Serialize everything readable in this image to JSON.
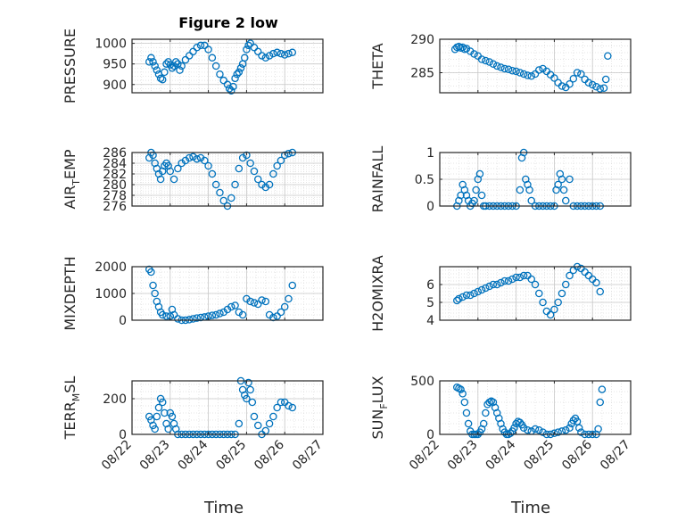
{
  "figure": {
    "title": "Figure 2 low",
    "marker_color": "#0072BD"
  },
  "chart_data": [
    {
      "type": "scatter",
      "title": "Figure 2 low",
      "ylabel": "PRESSURE",
      "xlabel": "",
      "xlim": [
        "08/22",
        "08/27"
      ],
      "ylim": [
        880,
        1010
      ],
      "yticks": [
        900,
        950,
        1000
      ],
      "xticks": [],
      "x": [
        22.45,
        22.5,
        22.55,
        22.6,
        22.65,
        22.7,
        22.75,
        22.8,
        22.85,
        22.9,
        22.95,
        23.0,
        23.05,
        23.1,
        23.15,
        23.2,
        23.25,
        23.3,
        23.4,
        23.5,
        23.6,
        23.7,
        23.8,
        23.9,
        24.0,
        24.1,
        24.2,
        24.3,
        24.4,
        24.5,
        24.55,
        24.6,
        24.65,
        24.7,
        24.75,
        24.8,
        24.85,
        24.9,
        24.95,
        25.0,
        25.05,
        25.1,
        25.2,
        25.3,
        25.4,
        25.5,
        25.6,
        25.7,
        25.8,
        25.9,
        26.0,
        26.1,
        26.2
      ],
      "y": [
        955,
        965,
        955,
        945,
        935,
        925,
        915,
        912,
        930,
        950,
        955,
        948,
        940,
        945,
        955,
        950,
        935,
        945,
        960,
        970,
        980,
        990,
        995,
        995,
        985,
        965,
        945,
        925,
        910,
        900,
        890,
        885,
        895,
        915,
        925,
        930,
        940,
        950,
        965,
        985,
        995,
        1000,
        990,
        980,
        970,
        965,
        970,
        975,
        978,
        975,
        972,
        975,
        978
      ]
    },
    {
      "type": "scatter",
      "title": "",
      "ylabel": "THETA",
      "xlabel": "",
      "xlim": [
        "08/22",
        "08/27"
      ],
      "ylim": [
        282,
        290
      ],
      "yticks": [
        285,
        290
      ],
      "xticks": [],
      "x": [
        22.4,
        22.45,
        22.5,
        22.55,
        22.6,
        22.65,
        22.7,
        22.8,
        22.9,
        23.0,
        23.1,
        23.2,
        23.3,
        23.4,
        23.5,
        23.6,
        23.7,
        23.8,
        23.9,
        24.0,
        24.1,
        24.2,
        24.3,
        24.4,
        24.5,
        24.6,
        24.7,
        24.8,
        24.9,
        25.0,
        25.1,
        25.2,
        25.3,
        25.4,
        25.5,
        25.6,
        25.7,
        25.8,
        25.9,
        26.0,
        26.1,
        26.2,
        26.3,
        26.35,
        26.4
      ],
      "y": [
        288.5,
        288.8,
        288.9,
        288.7,
        288.8,
        288.5,
        288.6,
        288.2,
        287.8,
        287.5,
        287.0,
        286.8,
        286.6,
        286.3,
        286.0,
        285.8,
        285.6,
        285.5,
        285.3,
        285.2,
        285.0,
        284.8,
        284.6,
        284.5,
        284.8,
        285.4,
        285.6,
        285.2,
        284.7,
        284.2,
        283.5,
        283.0,
        282.8,
        283.3,
        284.1,
        285.0,
        284.8,
        284.0,
        283.5,
        283.2,
        282.9,
        282.6,
        282.7,
        284.0,
        287.5
      ]
    },
    {
      "type": "scatter",
      "title": "",
      "ylabel": "AIR_TEMP",
      "ylabel_main": "AIR",
      "ylabel_sub": "T",
      "ylabel_rest": "EMP",
      "xlabel": "",
      "xlim": [
        "08/22",
        "08/27"
      ],
      "ylim": [
        276,
        286
      ],
      "yticks": [
        276,
        278,
        280,
        282,
        284,
        286
      ],
      "xticks": [],
      "x": [
        22.45,
        22.5,
        22.55,
        22.6,
        22.65,
        22.7,
        22.75,
        22.8,
        22.85,
        22.9,
        22.95,
        23.0,
        23.1,
        23.2,
        23.3,
        23.4,
        23.5,
        23.6,
        23.7,
        23.8,
        23.9,
        24.0,
        24.1,
        24.2,
        24.3,
        24.4,
        24.5,
        24.6,
        24.7,
        24.8,
        24.9,
        25.0,
        25.1,
        25.2,
        25.3,
        25.4,
        25.5,
        25.6,
        25.7,
        25.8,
        25.9,
        26.0,
        26.1,
        26.2
      ],
      "y": [
        285,
        286,
        285.5,
        284,
        283,
        282,
        281,
        282.5,
        283.5,
        284,
        283.5,
        282.5,
        281,
        283,
        284,
        284.5,
        285,
        285.2,
        284.8,
        285,
        284.5,
        283.5,
        282,
        280,
        278.5,
        277,
        276,
        277.5,
        280,
        283,
        285,
        285.5,
        284,
        282.5,
        281,
        280,
        279.5,
        280,
        282,
        283.5,
        284.5,
        285.5,
        285.8,
        286
      ]
    },
    {
      "type": "scatter",
      "title": "",
      "ylabel": "RAINFALL",
      "xlabel": "",
      "xlim": [
        "08/22",
        "08/27"
      ],
      "ylim": [
        0,
        1
      ],
      "yticks": [
        0,
        0.5,
        1
      ],
      "xticks": [],
      "x": [
        22.45,
        22.5,
        22.55,
        22.6,
        22.65,
        22.7,
        22.75,
        22.8,
        22.85,
        22.9,
        22.95,
        23.0,
        23.05,
        23.1,
        23.15,
        23.2,
        23.3,
        23.4,
        23.5,
        23.6,
        23.7,
        23.8,
        23.9,
        24.0,
        24.1,
        24.15,
        24.2,
        24.25,
        24.3,
        24.35,
        24.4,
        24.5,
        24.6,
        24.7,
        24.8,
        24.9,
        25.0,
        25.05,
        25.1,
        25.15,
        25.2,
        25.25,
        25.3,
        25.4,
        25.5,
        25.6,
        25.7,
        25.8,
        25.9,
        26.0,
        26.1,
        26.2
      ],
      "y": [
        0,
        0.1,
        0.2,
        0.4,
        0.3,
        0.2,
        0.1,
        0,
        0.05,
        0.1,
        0.3,
        0.5,
        0.6,
        0.2,
        0,
        0,
        0,
        0,
        0,
        0,
        0,
        0,
        0,
        0,
        0.3,
        0.9,
        1.0,
        0.5,
        0.4,
        0.3,
        0.1,
        0,
        0,
        0,
        0,
        0,
        0,
        0.3,
        0.4,
        0.6,
        0.5,
        0.3,
        0.1,
        0.5,
        0,
        0,
        0,
        0,
        0,
        0,
        0,
        0
      ]
    },
    {
      "type": "scatter",
      "title": "",
      "ylabel": "MIXDEPTH",
      "xlabel": "",
      "xlim": [
        "08/22",
        "08/27"
      ],
      "ylim": [
        0,
        2000
      ],
      "yticks": [
        0,
        1000,
        2000
      ],
      "xticks": [],
      "x": [
        22.45,
        22.5,
        22.55,
        22.6,
        22.65,
        22.7,
        22.75,
        22.8,
        22.9,
        23.0,
        23.05,
        23.1,
        23.2,
        23.3,
        23.4,
        23.5,
        23.6,
        23.7,
        23.8,
        23.9,
        24.0,
        24.1,
        24.2,
        24.3,
        24.4,
        24.5,
        24.6,
        24.7,
        24.8,
        24.9,
        25.0,
        25.1,
        25.2,
        25.3,
        25.4,
        25.5,
        25.6,
        25.7,
        25.8,
        25.9,
        26.0,
        26.1,
        26.2
      ],
      "y": [
        1900,
        1800,
        1300,
        1000,
        700,
        500,
        300,
        200,
        150,
        150,
        400,
        200,
        50,
        0,
        0,
        20,
        50,
        80,
        100,
        120,
        150,
        180,
        200,
        250,
        300,
        400,
        500,
        550,
        300,
        200,
        800,
        700,
        650,
        600,
        750,
        700,
        200,
        100,
        150,
        300,
        500,
        800,
        1300
      ]
    },
    {
      "type": "scatter",
      "title": "",
      "ylabel": "H2OMIXRA",
      "xlabel": "",
      "xlim": [
        "08/22",
        "08/27"
      ],
      "ylim": [
        4,
        7
      ],
      "yticks": [
        4,
        5,
        6
      ],
      "xticks": [],
      "x": [
        22.45,
        22.5,
        22.6,
        22.7,
        22.8,
        22.9,
        23.0,
        23.1,
        23.2,
        23.3,
        23.4,
        23.5,
        23.6,
        23.7,
        23.8,
        23.9,
        24.0,
        24.1,
        24.2,
        24.3,
        24.4,
        24.5,
        24.6,
        24.7,
        24.8,
        24.9,
        25.0,
        25.1,
        25.2,
        25.3,
        25.4,
        25.5,
        25.6,
        25.7,
        25.8,
        25.9,
        26.0,
        26.1,
        26.2
      ],
      "y": [
        5.1,
        5.2,
        5.3,
        5.4,
        5.4,
        5.5,
        5.6,
        5.7,
        5.8,
        5.9,
        6.0,
        6.0,
        6.1,
        6.2,
        6.2,
        6.3,
        6.4,
        6.4,
        6.5,
        6.5,
        6.3,
        6.0,
        5.5,
        5.0,
        4.5,
        4.3,
        4.6,
        5.0,
        5.5,
        6.0,
        6.5,
        6.8,
        7.0,
        6.9,
        6.7,
        6.5,
        6.3,
        6.1,
        5.6
      ]
    },
    {
      "type": "scatter",
      "title": "",
      "ylabel": "TERR_MSL",
      "ylabel_main": "TERR",
      "ylabel_sub": "M",
      "ylabel_rest": "SL",
      "xlabel": "Time",
      "xlim": [
        "08/22",
        "08/27"
      ],
      "ylim": [
        0,
        300
      ],
      "yticks": [
        0,
        200
      ],
      "xticks": [
        "08/22",
        "08/23",
        "08/24",
        "08/25",
        "08/26",
        "08/27"
      ],
      "x": [
        22.45,
        22.5,
        22.55,
        22.6,
        22.65,
        22.7,
        22.75,
        22.8,
        22.85,
        22.9,
        22.95,
        23.0,
        23.05,
        23.1,
        23.15,
        23.2,
        23.3,
        23.4,
        23.5,
        23.6,
        23.7,
        23.8,
        23.9,
        24.0,
        24.1,
        24.2,
        24.3,
        24.4,
        24.5,
        24.6,
        24.7,
        24.8,
        24.85,
        24.9,
        24.95,
        25.0,
        25.05,
        25.1,
        25.15,
        25.2,
        25.3,
        25.4,
        25.5,
        25.6,
        25.7,
        25.8,
        25.9,
        26.0,
        26.1,
        26.2
      ],
      "y": [
        100,
        80,
        50,
        30,
        100,
        150,
        200,
        180,
        120,
        60,
        30,
        120,
        100,
        60,
        30,
        0,
        0,
        0,
        0,
        0,
        0,
        0,
        0,
        0,
        0,
        0,
        0,
        0,
        0,
        0,
        0,
        60,
        300,
        250,
        220,
        200,
        290,
        250,
        180,
        100,
        50,
        0,
        20,
        60,
        100,
        150,
        180,
        180,
        160,
        150
      ]
    },
    {
      "type": "scatter",
      "title": "",
      "ylabel": "SUN_FLUX",
      "ylabel_main": "SUN",
      "ylabel_sub": "F",
      "ylabel_rest": "LUX",
      "xlabel": "Time",
      "xlim": [
        "08/22",
        "08/27"
      ],
      "ylim": [
        0,
        500
      ],
      "yticks": [
        0,
        500
      ],
      "xticks": [
        "08/22",
        "08/23",
        "08/24",
        "08/25",
        "08/26",
        "08/27"
      ],
      "x": [
        22.45,
        22.5,
        22.55,
        22.6,
        22.65,
        22.7,
        22.75,
        22.8,
        22.85,
        22.9,
        22.95,
        23.0,
        23.05,
        23.1,
        23.15,
        23.2,
        23.25,
        23.3,
        23.35,
        23.4,
        23.45,
        23.5,
        23.55,
        23.6,
        23.65,
        23.7,
        23.75,
        23.8,
        23.85,
        23.9,
        23.95,
        24.0,
        24.05,
        24.1,
        24.15,
        24.2,
        24.3,
        24.4,
        24.5,
        24.6,
        24.7,
        24.8,
        24.9,
        25.0,
        25.1,
        25.2,
        25.3,
        25.4,
        25.45,
        25.5,
        25.55,
        25.6,
        25.65,
        25.7,
        25.8,
        25.9,
        26.0,
        26.1,
        26.15,
        26.2,
        26.25
      ],
      "y": [
        440,
        430,
        420,
        380,
        300,
        200,
        100,
        30,
        0,
        0,
        0,
        0,
        20,
        50,
        100,
        200,
        280,
        300,
        310,
        300,
        250,
        200,
        150,
        100,
        50,
        20,
        0,
        0,
        10,
        30,
        60,
        100,
        120,
        110,
        90,
        60,
        40,
        30,
        50,
        40,
        20,
        0,
        0,
        10,
        20,
        30,
        40,
        60,
        100,
        130,
        150,
        120,
        60,
        20,
        0,
        0,
        0,
        0,
        50,
        300,
        420
      ]
    }
  ]
}
